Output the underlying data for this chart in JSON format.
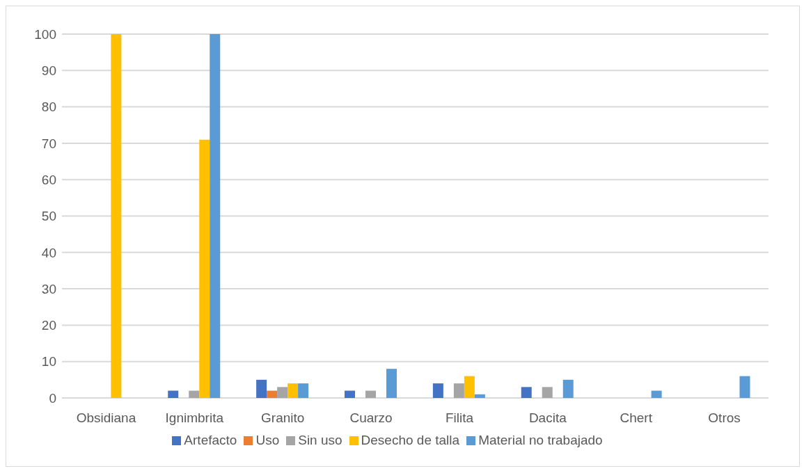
{
  "chart_data": {
    "type": "bar",
    "categories": [
      "Obsidiana",
      "Ignimbrita",
      "Granito",
      "Cuarzo",
      "Filita",
      "Dacita",
      "Chert",
      "Otros"
    ],
    "series": [
      {
        "name": "Artefacto",
        "color": "#4472c4",
        "values": [
          null,
          2,
          5,
          2,
          4,
          3,
          null,
          null
        ]
      },
      {
        "name": "Uso",
        "color": "#ed7d31",
        "values": [
          null,
          null,
          2,
          null,
          null,
          null,
          null,
          null
        ]
      },
      {
        "name": "Sin uso",
        "color": "#a5a5a5",
        "values": [
          null,
          2,
          3,
          2,
          4,
          3,
          null,
          null
        ]
      },
      {
        "name": "Desecho de talla",
        "color": "#ffc000",
        "values": [
          100,
          71,
          4,
          null,
          6,
          null,
          null,
          null
        ]
      },
      {
        "name": "Material no trabajado",
        "color": "#5b9bd5",
        "values": [
          null,
          100,
          4,
          8,
          1,
          5,
          2,
          6
        ]
      }
    ],
    "ylim": [
      0,
      100
    ],
    "yticks": [
      0,
      10,
      20,
      30,
      40,
      50,
      60,
      70,
      80,
      90,
      100
    ],
    "grid": "y",
    "legend": "bottom"
  }
}
